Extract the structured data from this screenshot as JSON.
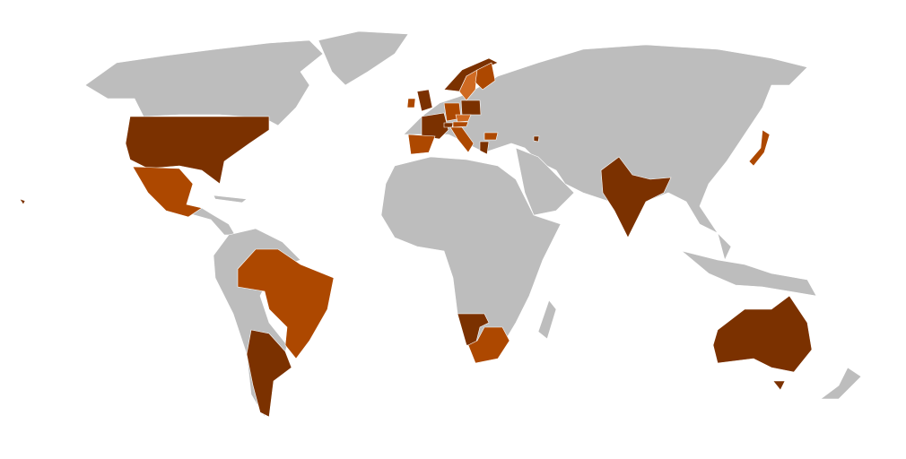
{
  "map": {
    "type": "world-choropleth",
    "colors": {
      "background": "#ffffff",
      "land": "#bdbdbd",
      "dark": "#7b3100",
      "mid": "#ad4800",
      "light": "#cf6a22",
      "border": "#ffffff"
    },
    "shades": {
      "united-states": "dark",
      "mexico": "mid",
      "brazil": "mid",
      "argentina": "dark",
      "united-kingdom": "dark",
      "ireland": "mid",
      "france": "dark",
      "spain": "mid",
      "germany": "mid",
      "poland": "dark",
      "italy": "mid",
      "norway": "dark",
      "sweden": "light",
      "finland": "mid",
      "greece": "dark",
      "bulgaria": "mid",
      "armenia": "dark",
      "austria": "mid",
      "czechia": "light",
      "switzerland": "dark",
      "namibia": "dark",
      "south-africa": "mid",
      "india": "dark",
      "japan": "mid",
      "australia": "dark",
      "hawaii": "dark"
    }
  }
}
